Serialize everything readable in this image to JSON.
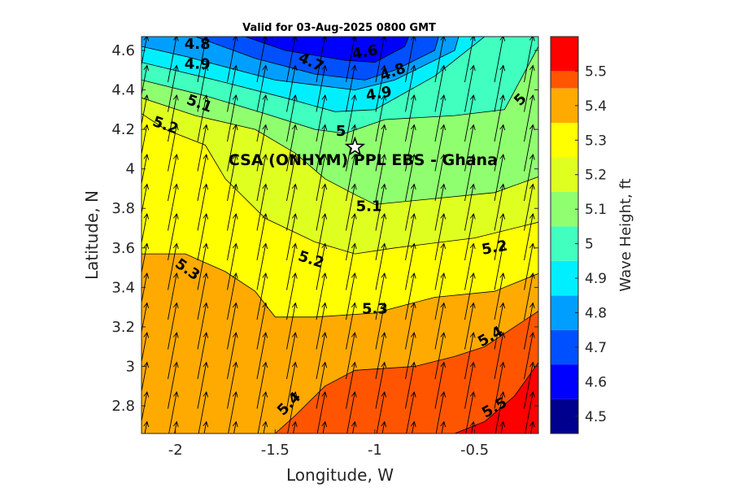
{
  "chart_data": {
    "type": "contour",
    "title": "Valid for 03-Aug-2025 0800 GMT",
    "xlabel": "Longitude, W",
    "ylabel": "Latitude, N",
    "colorbar_label": "Wave Height, ft",
    "xlim": [
      -2.17,
      -0.18
    ],
    "ylim": [
      2.66,
      4.67
    ],
    "xticks": [
      -2,
      -1.5,
      -1,
      -0.5
    ],
    "xtick_labels": [
      "-2",
      "-1.5",
      "-1",
      "-0.5"
    ],
    "yticks": [
      2.8,
      3,
      3.2,
      3.4,
      3.6,
      3.8,
      4,
      4.2,
      4.4,
      4.6
    ],
    "ytick_labels": [
      "2.8",
      "3",
      "3.2",
      "3.4",
      "3.6",
      "3.8",
      "4",
      "4.2",
      "4.4",
      "4.6"
    ],
    "levels": [
      4.5,
      4.6,
      4.7,
      4.8,
      4.9,
      5,
      5.1,
      5.2,
      5.3,
      5.4,
      5.5
    ],
    "colorbar_ticks": [
      "4.5",
      "4.6",
      "4.7",
      "4.8",
      "4.9",
      "5",
      "5.1",
      "5.2",
      "5.3",
      "5.4",
      "5.5"
    ],
    "colormap": [
      "#00008f",
      "#0000ff",
      "#0050ff",
      "#009fff",
      "#00efff",
      "#40ffbf",
      "#8fff70",
      "#dfff20",
      "#ffff00",
      "#ffaa00",
      "#ff5500",
      "#ff0000"
    ],
    "contour_labels": [
      {
        "text": "4.6",
        "lon": -1.05,
        "lat": 4.59,
        "angle": -10
      },
      {
        "text": "4.7",
        "lon": -1.32,
        "lat": 4.54,
        "angle": 25
      },
      {
        "text": "4.8",
        "lon": -1.89,
        "lat": 4.63,
        "angle": 0
      },
      {
        "text": "4.8",
        "lon": -0.91,
        "lat": 4.49,
        "angle": -20
      },
      {
        "text": "4.9",
        "lon": -1.89,
        "lat": 4.53,
        "angle": 0
      },
      {
        "text": "4.9",
        "lon": -0.98,
        "lat": 4.38,
        "angle": -10
      },
      {
        "text": "5",
        "lon": -1.17,
        "lat": 4.19,
        "angle": 0
      },
      {
        "text": "5",
        "lon": -0.27,
        "lat": 4.35,
        "angle": -45
      },
      {
        "text": "5.1",
        "lon": -1.88,
        "lat": 4.33,
        "angle": 20
      },
      {
        "text": "5.1",
        "lon": -1.03,
        "lat": 3.81,
        "angle": 0
      },
      {
        "text": "5.2",
        "lon": -2.05,
        "lat": 4.22,
        "angle": 20
      },
      {
        "text": "5.2",
        "lon": -1.32,
        "lat": 3.54,
        "angle": 18
      },
      {
        "text": "5.2",
        "lon": -0.4,
        "lat": 3.6,
        "angle": -10
      },
      {
        "text": "5.3",
        "lon": -1.94,
        "lat": 3.49,
        "angle": 35
      },
      {
        "text": "5.3",
        "lon": -1.0,
        "lat": 3.29,
        "angle": 0
      },
      {
        "text": "5.4",
        "lon": -1.43,
        "lat": 2.81,
        "angle": -45
      },
      {
        "text": "5.4",
        "lon": -0.42,
        "lat": 3.15,
        "angle": -30
      },
      {
        "text": "5.5",
        "lon": -0.4,
        "lat": 2.79,
        "angle": -30
      }
    ],
    "site": {
      "name": "CSA (ONHYM) PPL EBS  - Ghana",
      "lon": -1.1,
      "lat": 4.11
    },
    "vector_field": {
      "direction": "toward NNE",
      "dx_per_unit": 0.19,
      "dy_per_unit": 1
    }
  }
}
